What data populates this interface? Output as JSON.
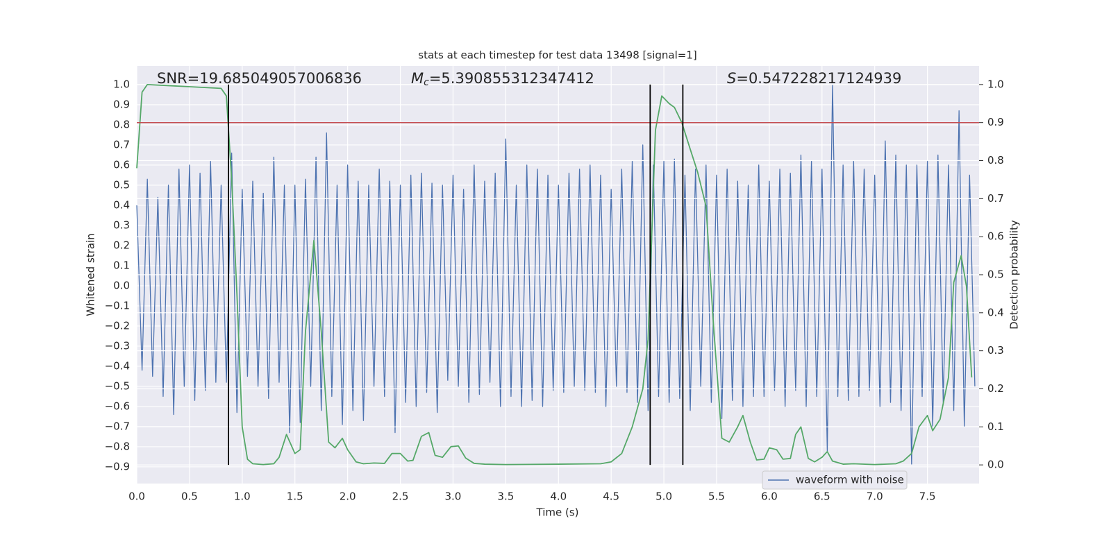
{
  "chart_data": {
    "type": "line",
    "title": "stats at each timestep for test data 13498 [signal=1]",
    "xlabel": "Time (s)",
    "ylabel": "Whitened strain",
    "y2label": "Detection probability",
    "xlim": [
      0,
      7.99
    ],
    "ylim": [
      -0.983,
      1.093
    ],
    "y2lim": [
      -0.049,
      1.049
    ],
    "grid": true,
    "legend": "lower right",
    "xticks": [
      {
        "value": 0,
        "label": "0.0"
      },
      0.5,
      {
        "value": 1,
        "label": "1.0"
      },
      1.5,
      {
        "value": 2,
        "label": "2.0"
      },
      2.5,
      {
        "value": 3,
        "label": "3.0"
      },
      3.5,
      {
        "value": 4,
        "label": "4.0"
      },
      4.5,
      {
        "value": 5,
        "label": "5.0"
      },
      5.5,
      {
        "value": 6,
        "label": "6.0"
      },
      6.5,
      {
        "value": 7,
        "label": "7.0"
      },
      7.5
    ],
    "yticks": [
      {
        "value": -0.9,
        "label": "−0.9"
      },
      {
        "value": -0.8,
        "label": "−0.8"
      },
      {
        "value": -0.7,
        "label": "−0.7"
      },
      {
        "value": -0.6,
        "label": "−0.6"
      },
      {
        "value": -0.5,
        "label": "−0.5"
      },
      {
        "value": -0.4,
        "label": "−0.4"
      },
      {
        "value": -0.3,
        "label": "−0.3"
      },
      {
        "value": -0.2,
        "label": "−0.2"
      },
      {
        "value": -0.1,
        "label": "−0.1"
      },
      {
        "value": 0,
        "label": "0.0"
      },
      0.1,
      0.2,
      0.3,
      0.4,
      0.5,
      0.6,
      0.7,
      0.8,
      0.9,
      {
        "value": 1,
        "label": "1.0"
      }
    ],
    "y2ticks": [
      {
        "value": 0,
        "label": "0.0"
      },
      0.1,
      0.2,
      0.3,
      0.4,
      0.5,
      0.6,
      0.7,
      0.8,
      0.9,
      {
        "value": 1,
        "label": "1.0"
      }
    ],
    "annotations": [
      {
        "parts": [
          {
            "text": "SNR=19.685049057006836"
          }
        ]
      },
      {
        "parts": [
          {
            "text": "M",
            "style": "italic"
          },
          {
            "text": "c",
            "style": "italic-subscript"
          },
          {
            "text": "=5.390855312347412"
          }
        ]
      },
      {
        "parts": [
          {
            "text": "S",
            "style": "italic"
          },
          {
            "text": "=0.547228217124939"
          }
        ]
      }
    ],
    "hlines": [
      {
        "y": 0.9,
        "axis": "y2",
        "color": "#c44e52"
      }
    ],
    "vlines": [
      {
        "x": 0.87,
        "ymin": 0,
        "ymax": 1,
        "axis": "y2",
        "color": "#000000"
      },
      {
        "x": 4.87,
        "ymin": 0,
        "ymax": 1,
        "axis": "y2",
        "color": "#000000"
      },
      {
        "x": 5.18,
        "ymin": 0,
        "ymax": 1,
        "axis": "y2",
        "color": "#000000"
      }
    ],
    "series": [
      {
        "name": "waveform with noise",
        "color": "#4c72b0",
        "axis": "y",
        "x": [
          0,
          0.05,
          0.1,
          0.15,
          0.2,
          0.25,
          0.3,
          0.35,
          0.4,
          0.45,
          0.5,
          0.55,
          0.6,
          0.65,
          0.7,
          0.75,
          0.8,
          0.85,
          0.9,
          0.95,
          1,
          1.05,
          1.1,
          1.15,
          1.2,
          1.25,
          1.3,
          1.35,
          1.4,
          1.45,
          1.5,
          1.55,
          1.6,
          1.65,
          1.7,
          1.75,
          1.8,
          1.85,
          1.9,
          1.95,
          2,
          2.05,
          2.1,
          2.15,
          2.2,
          2.25,
          2.3,
          2.35,
          2.4,
          2.45,
          2.5,
          2.55,
          2.6,
          2.65,
          2.7,
          2.75,
          2.8,
          2.85,
          2.9,
          2.95,
          3,
          3.05,
          3.1,
          3.15,
          3.2,
          3.25,
          3.3,
          3.35,
          3.4,
          3.45,
          3.5,
          3.55,
          3.6,
          3.65,
          3.7,
          3.75,
          3.8,
          3.85,
          3.9,
          3.95,
          4,
          4.05,
          4.1,
          4.15,
          4.2,
          4.25,
          4.3,
          4.35,
          4.4,
          4.45,
          4.5,
          4.55,
          4.6,
          4.65,
          4.7,
          4.75,
          4.8,
          4.85,
          4.9,
          4.95,
          5,
          5.05,
          5.1,
          5.15,
          5.2,
          5.25,
          5.3,
          5.35,
          5.4,
          5.45,
          5.5,
          5.55,
          5.6,
          5.65,
          5.7,
          5.75,
          5.8,
          5.85,
          5.9,
          5.95,
          6,
          6.05,
          6.1,
          6.15,
          6.2,
          6.25,
          6.3,
          6.35,
          6.4,
          6.45,
          6.5,
          6.55,
          6.6,
          6.65,
          6.7,
          6.75,
          6.8,
          6.85,
          6.9,
          6.95,
          7,
          7.05,
          7.1,
          7.15,
          7.2,
          7.25,
          7.3,
          7.35,
          7.4,
          7.45,
          7.5,
          7.55,
          7.6,
          7.65,
          7.7,
          7.75,
          7.8,
          7.85,
          7.9,
          7.95
        ],
        "values": [
          0.4,
          -0.42,
          0.53,
          -0.45,
          0.44,
          -0.55,
          0.5,
          -0.64,
          0.58,
          -0.5,
          0.6,
          -0.57,
          0.56,
          -0.52,
          0.62,
          -0.48,
          0.5,
          -0.48,
          0.66,
          -0.63,
          0.48,
          -0.45,
          0.52,
          -0.5,
          0.46,
          -0.56,
          0.64,
          -0.48,
          0.5,
          -0.73,
          0.5,
          -0.68,
          0.53,
          -0.5,
          0.64,
          -0.62,
          0.76,
          -0.55,
          0.5,
          -0.69,
          0.6,
          -0.62,
          0.52,
          -0.67,
          0.5,
          -0.5,
          0.58,
          -0.55,
          0.52,
          -0.73,
          0.5,
          -0.58,
          0.55,
          -0.6,
          0.56,
          -0.53,
          0.51,
          -0.63,
          0.5,
          -0.47,
          0.55,
          -0.5,
          0.48,
          -0.58,
          0.6,
          -0.54,
          0.52,
          -0.48,
          0.56,
          -0.6,
          0.73,
          -0.55,
          0.5,
          -0.6,
          0.6,
          -0.57,
          0.58,
          -0.6,
          0.55,
          -0.52,
          0.5,
          -0.53,
          0.56,
          -0.5,
          0.58,
          -0.52,
          0.6,
          -0.53,
          0.55,
          -0.6,
          0.48,
          -0.5,
          0.58,
          -0.53,
          0.62,
          -0.58,
          0.7,
          -0.62,
          0.6,
          -0.55,
          0.62,
          -0.58,
          0.63,
          -0.56,
          0.55,
          -0.62,
          0.58,
          -0.5,
          0.6,
          -0.58,
          0.55,
          -0.66,
          0.58,
          -0.57,
          0.52,
          -0.6,
          0.5,
          -0.55,
          0.6,
          -0.55,
          0.52,
          -0.52,
          0.58,
          -0.6,
          0.56,
          -0.52,
          0.65,
          -0.6,
          0.62,
          -0.55,
          0.58,
          -0.82,
          1.0,
          -0.55,
          0.6,
          -0.57,
          0.62,
          -0.55,
          0.58,
          -0.52,
          0.55,
          -0.6,
          0.72,
          -0.58,
          0.65,
          -0.62,
          0.6,
          -0.89,
          0.6,
          -0.55,
          0.62,
          -0.7,
          0.65,
          -0.58,
          0.6,
          -0.62,
          0.87,
          -0.7,
          0.55,
          -0.5
        ]
      },
      {
        "color": "#55a868",
        "axis": "y2",
        "x": [
          0,
          0.05,
          0.1,
          0.8,
          0.85,
          0.9,
          0.95,
          1,
          1.05,
          1.1,
          1.2,
          1.3,
          1.35,
          1.42,
          1.5,
          1.55,
          1.6,
          1.68,
          1.75,
          1.82,
          1.88,
          1.95,
          2,
          2.08,
          2.15,
          2.25,
          2.35,
          2.42,
          2.5,
          2.57,
          2.62,
          2.7,
          2.77,
          2.83,
          2.9,
          2.98,
          3.05,
          3.12,
          3.2,
          3.3,
          3.5,
          4,
          4.4,
          4.5,
          4.6,
          4.7,
          4.8,
          4.85,
          4.92,
          4.98,
          5.05,
          5.1,
          5.17,
          5.25,
          5.32,
          5.4,
          5.47,
          5.55,
          5.62,
          5.7,
          5.75,
          5.82,
          5.88,
          5.95,
          6,
          6.07,
          6.13,
          6.2,
          6.25,
          6.3,
          6.37,
          6.43,
          6.5,
          6.55,
          6.6,
          6.7,
          6.8,
          7,
          7.2,
          7.27,
          7.35,
          7.42,
          7.5,
          7.55,
          7.62,
          7.7,
          7.75,
          7.82,
          7.87,
          7.92
        ],
        "values": [
          0.78,
          0.98,
          1.0,
          0.99,
          0.97,
          0.75,
          0.45,
          0.1,
          0.015,
          0.003,
          0.001,
          0.003,
          0.02,
          0.08,
          0.03,
          0.04,
          0.35,
          0.59,
          0.35,
          0.06,
          0.045,
          0.07,
          0.04,
          0.008,
          0.003,
          0.005,
          0.004,
          0.03,
          0.03,
          0.01,
          0.012,
          0.075,
          0.085,
          0.025,
          0.02,
          0.048,
          0.05,
          0.018,
          0.004,
          0.002,
          0.001,
          0.002,
          0.003,
          0.008,
          0.03,
          0.1,
          0.2,
          0.33,
          0.88,
          0.97,
          0.95,
          0.94,
          0.9,
          0.83,
          0.77,
          0.68,
          0.37,
          0.07,
          0.06,
          0.1,
          0.13,
          0.06,
          0.013,
          0.015,
          0.045,
          0.04,
          0.015,
          0.017,
          0.08,
          0.1,
          0.017,
          0.008,
          0.02,
          0.035,
          0.01,
          0.002,
          0.003,
          0.001,
          0.003,
          0.01,
          0.03,
          0.1,
          0.13,
          0.09,
          0.12,
          0.23,
          0.48,
          0.55,
          0.47,
          0.23
        ]
      }
    ]
  }
}
